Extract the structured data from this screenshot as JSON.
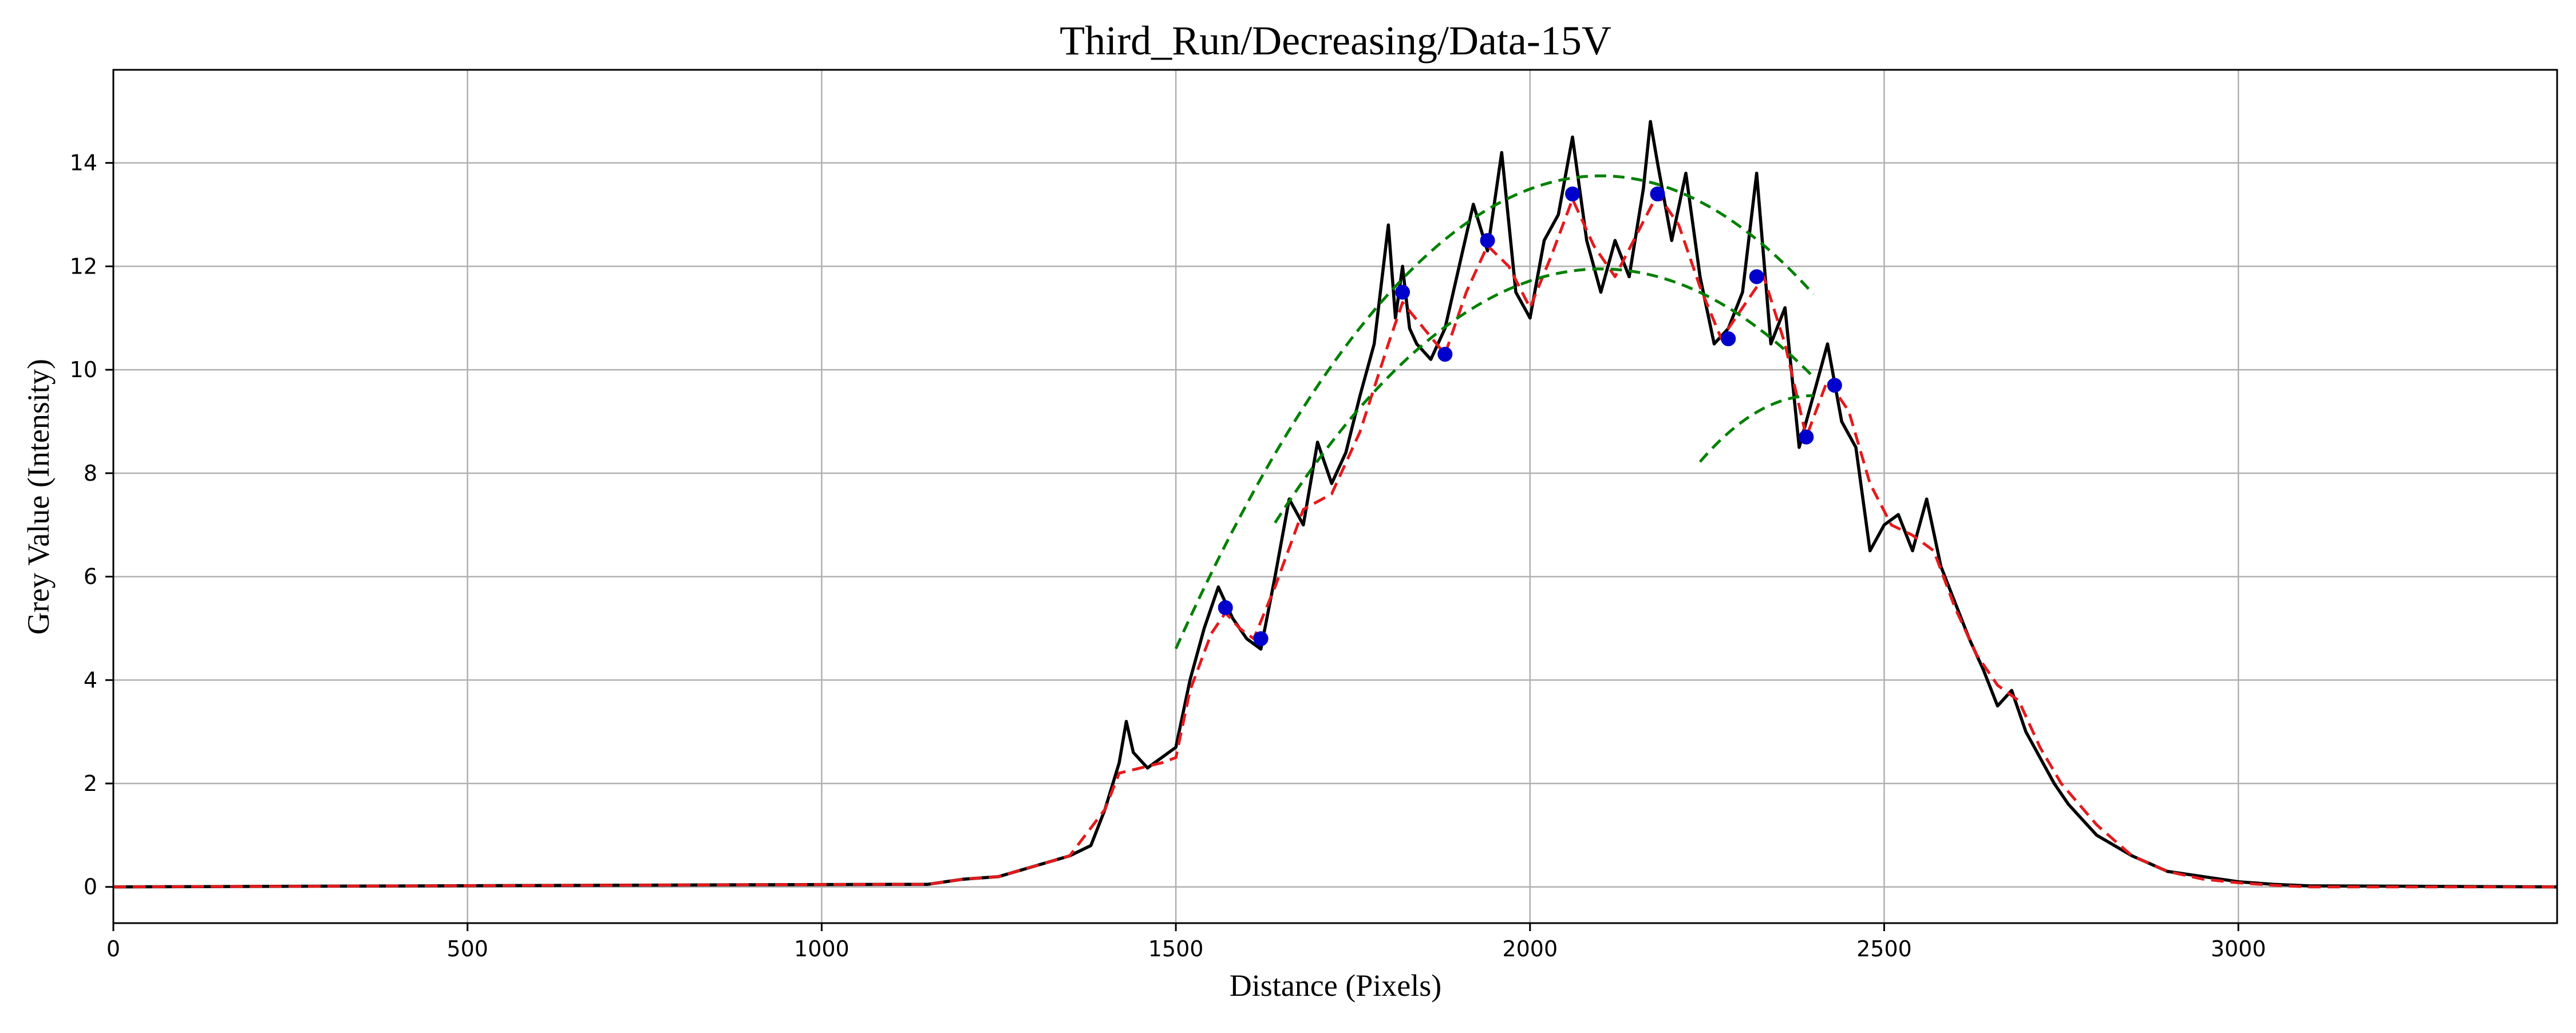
{
  "chart_data": {
    "type": "line",
    "title": "Third_Run/Decreasing/Data-15V",
    "xlabel": "Distance (Pixels)",
    "ylabel": "Grey Value (Intensity)",
    "xlim": [
      0,
      3450
    ],
    "ylim": [
      -0.7,
      15.8
    ],
    "xticks": [
      0,
      500,
      1000,
      1500,
      2000,
      2500,
      3000
    ],
    "yticks": [
      0,
      2,
      4,
      6,
      8,
      10,
      12,
      14
    ],
    "grid": true,
    "colors": {
      "raw": "#000000",
      "smoothed": "#e41a1c",
      "fit": "#008000",
      "peaks": "#0000cc",
      "grid": "#b0b0b0"
    },
    "series": [
      {
        "key": "raw",
        "style": "solid",
        "x": [
          0,
          1100,
          1150,
          1200,
          1250,
          1300,
          1350,
          1380,
          1400,
          1420,
          1430,
          1440,
          1460,
          1480,
          1500,
          1520,
          1540,
          1560,
          1570,
          1580,
          1600,
          1620,
          1640,
          1660,
          1680,
          1700,
          1720,
          1740,
          1760,
          1780,
          1800,
          1810,
          1820,
          1830,
          1840,
          1860,
          1880,
          1900,
          1920,
          1940,
          1960,
          1980,
          2000,
          2020,
          2040,
          2060,
          2080,
          2100,
          2120,
          2140,
          2160,
          2170,
          2180,
          2200,
          2220,
          2240,
          2260,
          2280,
          2300,
          2320,
          2340,
          2360,
          2380,
          2400,
          2420,
          2440,
          2460,
          2480,
          2500,
          2520,
          2540,
          2560,
          2580,
          2600,
          2620,
          2640,
          2660,
          2680,
          2700,
          2720,
          2740,
          2760,
          2780,
          2800,
          2850,
          2900,
          2950,
          3000,
          3050,
          3100,
          3450
        ],
        "y": [
          0,
          0.05,
          0.05,
          0.15,
          0.2,
          0.4,
          0.6,
          0.8,
          1.5,
          2.4,
          3.2,
          2.6,
          2.3,
          2.5,
          2.7,
          4.0,
          5.0,
          5.8,
          5.5,
          5.2,
          4.8,
          4.6,
          6.0,
          7.5,
          7.0,
          8.6,
          7.8,
          8.4,
          9.5,
          10.5,
          12.8,
          11.0,
          12.0,
          10.8,
          10.5,
          10.2,
          10.8,
          12.0,
          13.2,
          12.3,
          14.2,
          11.5,
          11.0,
          12.5,
          13.0,
          14.5,
          12.5,
          11.5,
          12.5,
          11.8,
          13.5,
          14.8,
          14.0,
          12.5,
          13.8,
          11.8,
          10.5,
          10.8,
          11.5,
          13.8,
          10.5,
          11.2,
          8.5,
          9.5,
          10.5,
          9.0,
          8.5,
          6.5,
          7.0,
          7.2,
          6.5,
          7.5,
          6.2,
          5.5,
          4.8,
          4.2,
          3.5,
          3.8,
          3.0,
          2.5,
          2.0,
          1.6,
          1.3,
          1.0,
          0.6,
          0.3,
          0.2,
          0.1,
          0.05,
          0.02,
          0
        ]
      },
      {
        "key": "smoothed",
        "style": "dashed",
        "x": [
          0,
          1100,
          1150,
          1200,
          1250,
          1300,
          1350,
          1400,
          1420,
          1450,
          1480,
          1500,
          1520,
          1550,
          1570,
          1590,
          1610,
          1640,
          1680,
          1720,
          1760,
          1800,
          1820,
          1850,
          1880,
          1910,
          1940,
          1970,
          2000,
          2030,
          2060,
          2090,
          2120,
          2150,
          2180,
          2210,
          2240,
          2270,
          2300,
          2330,
          2360,
          2390,
          2420,
          2450,
          2480,
          2510,
          2540,
          2570,
          2600,
          2630,
          2660,
          2690,
          2720,
          2750,
          2800,
          2850,
          2900,
          2950,
          3000,
          3050,
          3100,
          3450
        ],
        "y": [
          0,
          0.05,
          0.05,
          0.15,
          0.2,
          0.4,
          0.6,
          1.5,
          2.2,
          2.3,
          2.4,
          2.5,
          3.8,
          4.9,
          5.3,
          5.0,
          4.8,
          5.8,
          7.3,
          7.6,
          8.8,
          10.5,
          11.3,
          10.8,
          10.3,
          11.5,
          12.4,
          12.0,
          11.2,
          12.2,
          13.3,
          12.4,
          11.8,
          12.6,
          13.4,
          12.8,
          11.6,
          10.6,
          11.2,
          11.8,
          10.5,
          8.7,
          9.8,
          9.2,
          7.8,
          7.0,
          6.8,
          6.5,
          5.4,
          4.5,
          3.9,
          3.6,
          2.7,
          2.0,
          1.2,
          0.6,
          0.3,
          0.15,
          0.08,
          0.03,
          0,
          0
        ]
      }
    ],
    "fit_curves": [
      {
        "vertex_x": 2100,
        "vertex_y": 13.75,
        "a": 2.54e-05,
        "x_range": [
          1500,
          2400
        ]
      },
      {
        "vertex_x": 2100,
        "vertex_y": 11.95,
        "a": 2.32e-05,
        "x_range": [
          1640,
          2400
        ]
      },
      {
        "vertex_x": 2400,
        "vertex_y": 9.5,
        "a": 5e-05,
        "x_range": [
          2240,
          2400
        ]
      }
    ],
    "peaks": [
      {
        "x": 1570,
        "y": 5.4
      },
      {
        "x": 1620,
        "y": 4.8
      },
      {
        "x": 1820,
        "y": 11.5
      },
      {
        "x": 1880,
        "y": 10.3
      },
      {
        "x": 1940,
        "y": 12.5
      },
      {
        "x": 2060,
        "y": 13.4
      },
      {
        "x": 2180,
        "y": 13.4
      },
      {
        "x": 2280,
        "y": 10.6
      },
      {
        "x": 2320,
        "y": 11.8
      },
      {
        "x": 2390,
        "y": 8.7
      },
      {
        "x": 2430,
        "y": 9.7
      }
    ]
  }
}
